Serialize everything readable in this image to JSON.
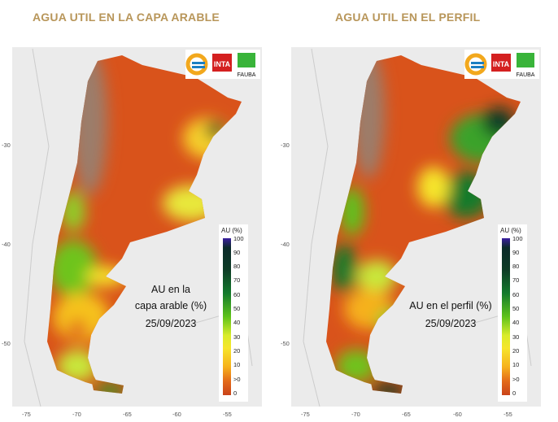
{
  "left": {
    "title": "AGUA UTIL EN LA CAPA ARABLE",
    "annotation_line1": "AU en la",
    "annotation_line2": "capa arable (%)",
    "date": "25/09/2023"
  },
  "right": {
    "title": "AGUA UTIL EN EL PERFIL",
    "annotation_line1": "AU en el perfil (%)",
    "date": "25/09/2023"
  },
  "legend": {
    "title": "AU (%)",
    "ticks": [
      "100",
      "90",
      "80",
      "70",
      "60",
      "50",
      "40",
      "30",
      "20",
      "10",
      ">0",
      "0"
    ]
  },
  "axes": {
    "x_ticks": [
      "-75",
      "-70",
      "-65",
      "-60",
      "-55"
    ],
    "y_ticks": [
      "-30",
      "-40",
      "-50"
    ]
  },
  "logos": [
    "INTA",
    "FAUBA"
  ],
  "colors": {
    "title": "#b8965a",
    "dry": "#d9531b",
    "wet": "#0d3c26"
  }
}
